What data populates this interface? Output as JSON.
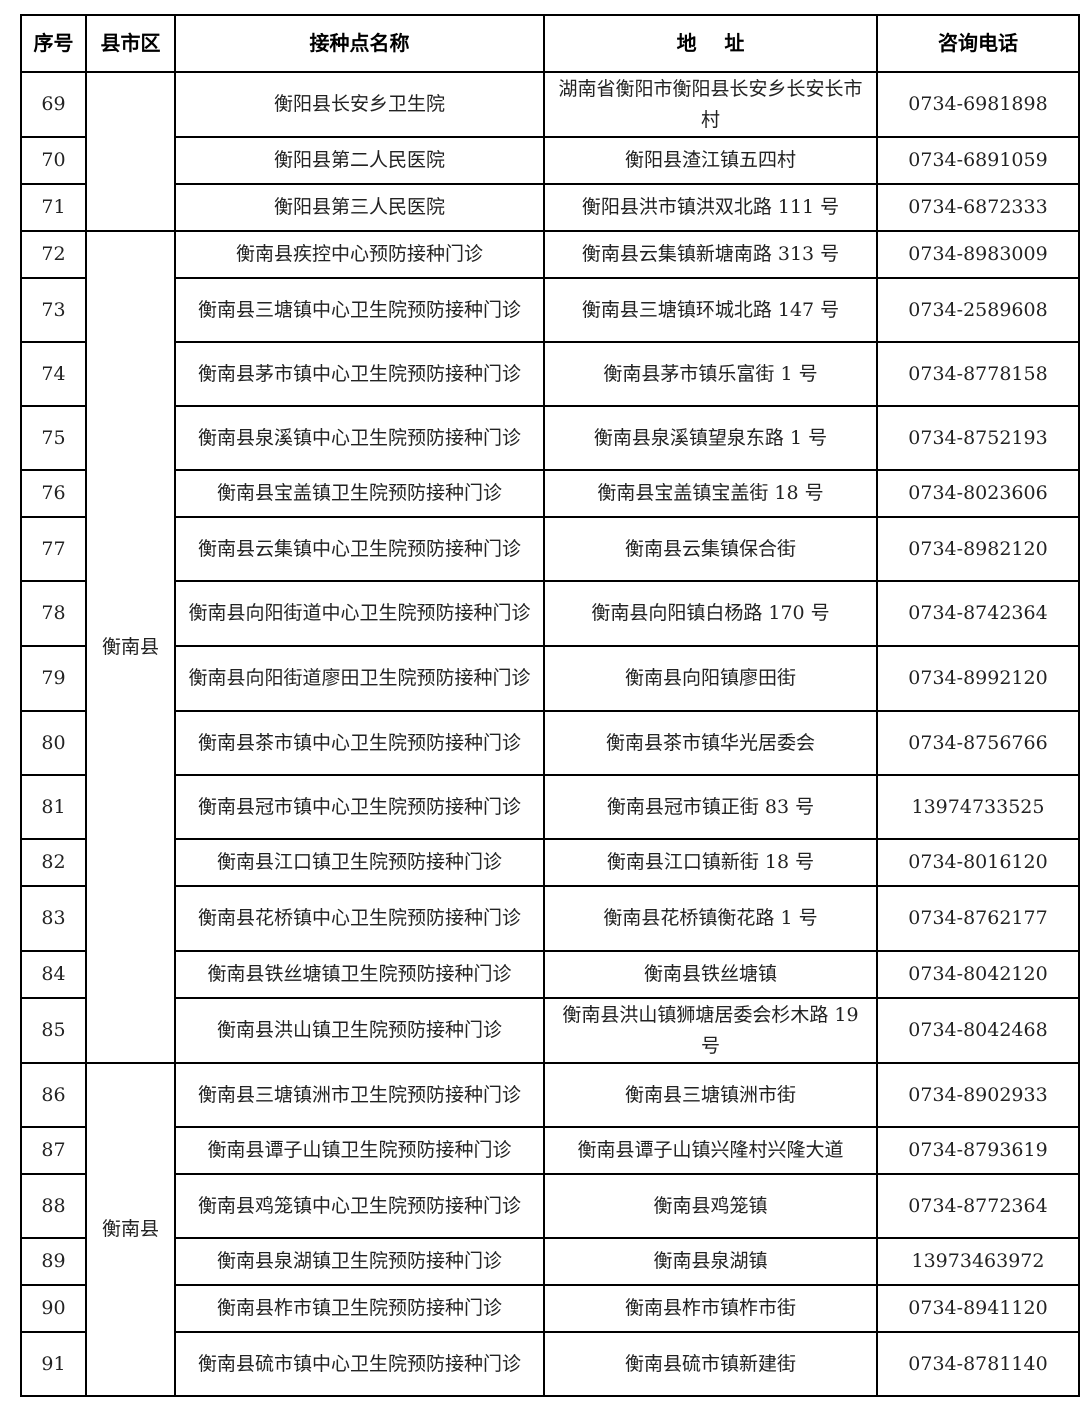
{
  "headers": [
    "序号",
    "县市区",
    "接种点名称",
    "地    址",
    "咨询电话"
  ],
  "groups": [
    {
      "county": "",
      "rows": [
        {
          "no": "69",
          "name": "衡阳县长安乡卫生院",
          "address": "湖南省衡阳市衡阳县长安乡长安长市村",
          "phone": "0734-6981898"
        },
        {
          "no": "70",
          "name": "衡阳县第二人民医院",
          "address": "衡阳县渣江镇五四村",
          "phone": "0734-6891059"
        },
        {
          "no": "71",
          "name": "衡阳县第三人民医院",
          "address": "衡阳县洪市镇洪双北路 111 号",
          "phone": "0734-6872333"
        }
      ]
    },
    {
      "county": "衡南县",
      "rows": [
        {
          "no": "72",
          "name": "衡南县疾控中心预防接种门诊",
          "address": "衡南县云集镇新塘南路 313 号",
          "phone": "0734-8983009"
        },
        {
          "no": "73",
          "name": "衡南县三塘镇中心卫生院预防接种门诊",
          "address": "衡南县三塘镇环城北路 147 号",
          "phone": "0734-2589608"
        },
        {
          "no": "74",
          "name": "衡南县茅市镇中心卫生院预防接种门诊",
          "address": "衡南县茅市镇乐富街 1 号",
          "phone": "0734-8778158"
        },
        {
          "no": "75",
          "name": "衡南县泉溪镇中心卫生院预防接种门诊",
          "address": "衡南县泉溪镇望泉东路 1 号",
          "phone": "0734-8752193"
        },
        {
          "no": "76",
          "name": "衡南县宝盖镇卫生院预防接种门诊",
          "address": "衡南县宝盖镇宝盖街 18 号",
          "phone": "0734-8023606"
        },
        {
          "no": "77",
          "name": "衡南县云集镇中心卫生院预防接种门诊",
          "address": "衡南县云集镇保合街",
          "phone": "0734-8982120"
        },
        {
          "no": "78",
          "name": "衡南县向阳街道中心卫生院预防接种门诊",
          "address": "衡南县向阳镇白杨路 170 号",
          "phone": "0734-8742364"
        },
        {
          "no": "79",
          "name": "衡南县向阳街道廖田卫生院预防接种门诊",
          "address": "衡南县向阳镇廖田街",
          "phone": "0734-8992120"
        },
        {
          "no": "80",
          "name": "衡南县茶市镇中心卫生院预防接种门诊",
          "address": "衡南县茶市镇华光居委会",
          "phone": "0734-8756766"
        },
        {
          "no": "81",
          "name": "衡南县冠市镇中心卫生院预防接种门诊",
          "address": "衡南县冠市镇正街 83 号",
          "phone": "13974733525"
        },
        {
          "no": "82",
          "name": "衡南县江口镇卫生院预防接种门诊",
          "address": "衡南县江口镇新街 18 号",
          "phone": "0734-8016120"
        },
        {
          "no": "83",
          "name": "衡南县花桥镇中心卫生院预防接种门诊",
          "address": "衡南县花桥镇衡花路 1 号",
          "phone": "0734-8762177"
        },
        {
          "no": "84",
          "name": "衡南县铁丝塘镇卫生院预防接种门诊",
          "address": "衡南县铁丝塘镇",
          "phone": "0734-8042120"
        },
        {
          "no": "85",
          "name": "衡南县洪山镇卫生院预防接种门诊",
          "address": "衡南县洪山镇狮塘居委会杉木路 19 号",
          "phone": "0734-8042468"
        }
      ]
    },
    {
      "county": "衡南县",
      "rows": [
        {
          "no": "86",
          "name": "衡南县三塘镇洲市卫生院预防接种门诊",
          "address": "衡南县三塘镇洲市街",
          "phone": "0734-8902933"
        },
        {
          "no": "87",
          "name": "衡南县谭子山镇卫生院预防接种门诊",
          "address": "衡南县谭子山镇兴隆村兴隆大道",
          "phone": "0734-8793619"
        },
        {
          "no": "88",
          "name": "衡南县鸡笼镇中心卫生院预防接种门诊",
          "address": "衡南县鸡笼镇",
          "phone": "0734-8772364"
        },
        {
          "no": "89",
          "name": "衡南县泉湖镇卫生院预防接种门诊",
          "address": "衡南县泉湖镇",
          "phone": "13973463972"
        },
        {
          "no": "90",
          "name": "衡南县柞市镇卫生院预防接种门诊",
          "address": "衡南县柞市镇柞市街",
          "phone": "0734-8941120"
        },
        {
          "no": "91",
          "name": "衡南县硫市镇中心卫生院预防接种门诊",
          "address": "衡南县硫市镇新建街",
          "phone": "0734-8781140"
        }
      ]
    }
  ]
}
